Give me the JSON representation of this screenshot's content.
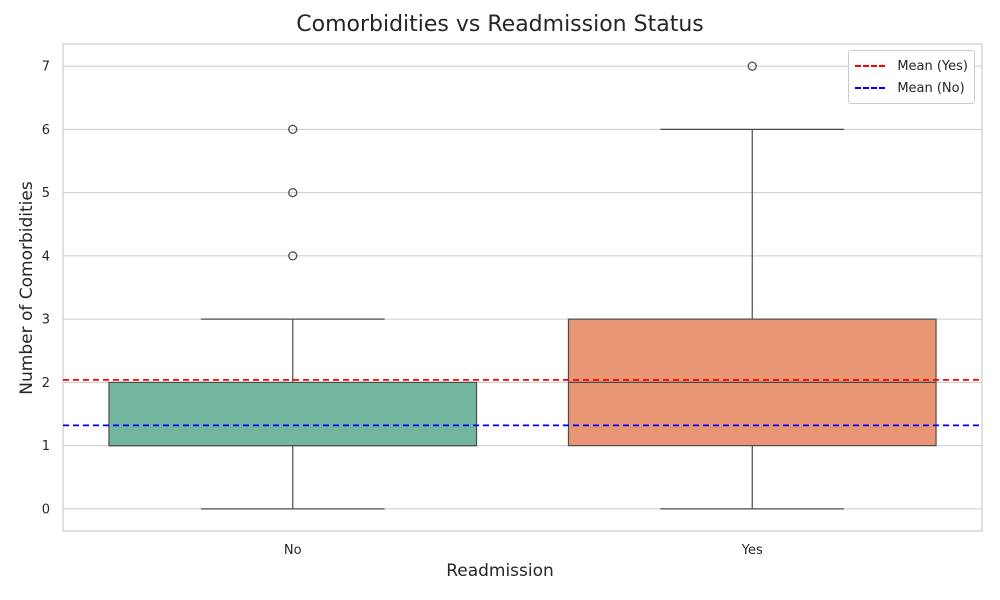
{
  "chart_data": {
    "type": "box",
    "title": "Comorbidities vs Readmission Status",
    "xlabel": "Readmission",
    "ylabel": "Number of Comorbidities",
    "categories": [
      "No",
      "Yes"
    ],
    "ylim": [
      -0.35,
      7.35
    ],
    "yticks": [
      0,
      1,
      2,
      3,
      4,
      5,
      6,
      7
    ],
    "grid": true,
    "legend_position": "top-right",
    "boxes": [
      {
        "category": "No",
        "min": 0,
        "q1": 1,
        "median": 1,
        "q3": 2,
        "max": 3,
        "outliers": [
          4,
          5,
          6
        ],
        "color": "#72b6a0"
      },
      {
        "category": "Yes",
        "min": 0,
        "q1": 1,
        "median": 2,
        "q3": 3,
        "max": 6,
        "outliers": [
          7
        ],
        "color": "#e99675"
      }
    ],
    "mean_lines": [
      {
        "name": "Mean (Yes)",
        "value": 2.04,
        "color": "#ff0000"
      },
      {
        "name": "Mean (No)",
        "value": 1.32,
        "color": "#0000ff"
      }
    ]
  }
}
